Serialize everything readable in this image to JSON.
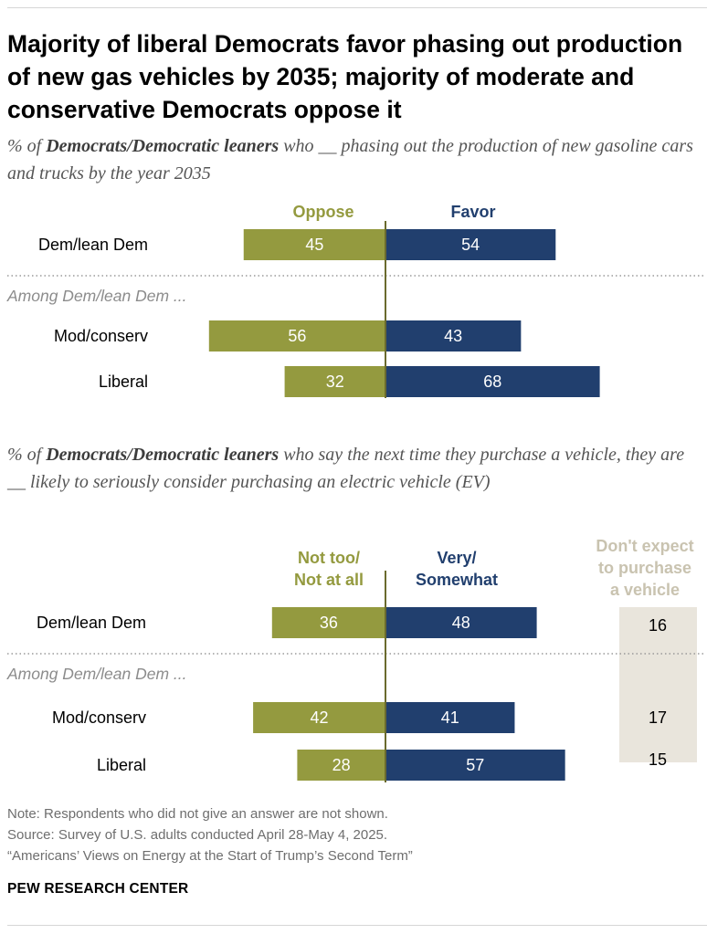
{
  "title": "Majority of liberal Democrats favor phasing out production of new gas vehicles by 2035; majority of moderate and conservative Democrats oppose it",
  "subtitle1": {
    "pre": "% of ",
    "bold": "Democrats/Democratic leaners",
    "post": " who __ phasing out the production of new gasoline cars and trucks by the year 2035"
  },
  "subtitle2": {
    "pre": "% of ",
    "bold": "Democrats/Democratic leaners",
    "post": " who say the next time they purchase a vehicle, they are __ likely to seriously consider purchasing an electric vehicle (EV)"
  },
  "colors": {
    "oppose": "#949a3f",
    "favor": "#213f6e",
    "dontexpect": "#e9e5dc",
    "axis": "#6b6b2e",
    "text_dark": "#000000",
    "muted": "#8c8c8c"
  },
  "chart_data": [
    {
      "type": "bar",
      "orientation": "horizontal-diverging",
      "legend": [
        "Oppose",
        "Favor"
      ],
      "section_label": "Among Dem/lean Dem ...",
      "categories": [
        "Dem/lean Dem",
        "Mod/conserv",
        "Liberal"
      ],
      "series": [
        {
          "name": "Oppose",
          "values": [
            45,
            56,
            32
          ]
        },
        {
          "name": "Favor",
          "values": [
            54,
            43,
            68
          ]
        }
      ]
    },
    {
      "type": "bar",
      "orientation": "horizontal-diverging",
      "legend": [
        "Not too/ Not at all",
        "Very/ Somewhat"
      ],
      "extra_column": "Don't expect to purchase a vehicle",
      "section_label": "Among Dem/lean Dem ...",
      "categories": [
        "Dem/lean Dem",
        "Mod/conserv",
        "Liberal"
      ],
      "series": [
        {
          "name": "Not too/ Not at all",
          "values": [
            36,
            42,
            28
          ]
        },
        {
          "name": "Very/ Somewhat",
          "values": [
            48,
            41,
            57
          ]
        },
        {
          "name": "Don't expect to purchase a vehicle",
          "values": [
            16,
            17,
            15
          ]
        }
      ]
    }
  ],
  "notes": {
    "note": "Note: Respondents who did not give an answer are not shown.",
    "source": "Source: Survey of U.S. adults conducted April 28-May 4, 2025.",
    "report": "“Americans’ Views on Energy at the Start of Trump’s Second Term”"
  },
  "brand": "PEW RESEARCH CENTER"
}
